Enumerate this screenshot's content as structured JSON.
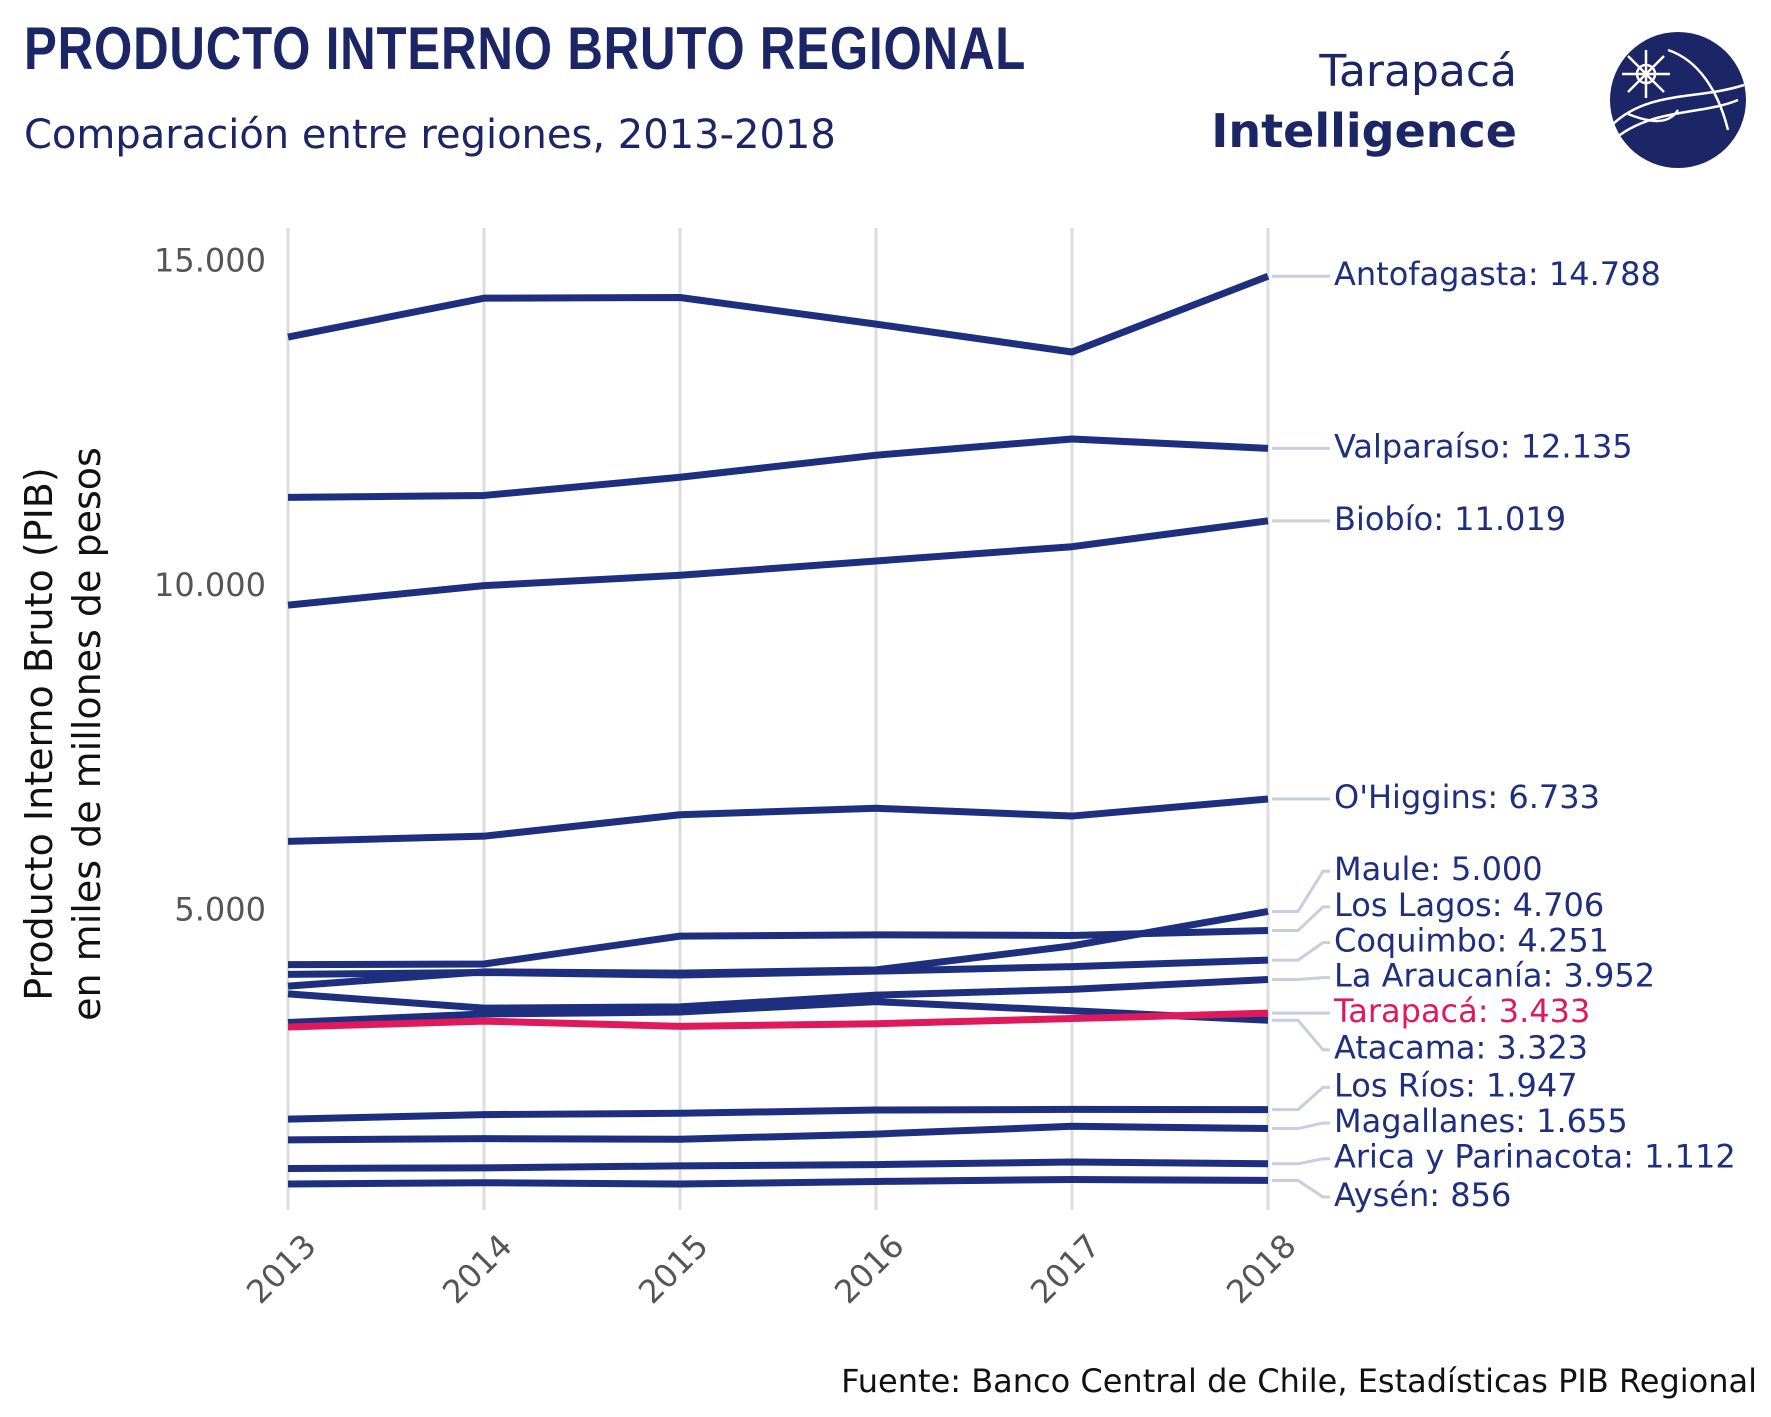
{
  "header": {
    "title": "PRODUCTO INTERNO BRUTO REGIONAL",
    "subtitle": "Comparación entre regiones, 2013-2018"
  },
  "brand": {
    "line1": "Tarapacá",
    "line2": "Intelligence",
    "logo_icon": "globe-compass-icon",
    "color": "#1c2566"
  },
  "footer": {
    "source": "Fuente: Banco Central de Chile, Estadísticas PIB Regional"
  },
  "colors": {
    "series": "#1f2f7f",
    "highlight": "#e0185c",
    "grid": "#dddddd",
    "connector": "#c9cde0"
  },
  "chart_data": {
    "type": "line",
    "ylabel_line1": "Producto Interno Bruto (PIB)",
    "ylabel_line2": "en miles de millones de pesos",
    "x": [
      "2013",
      "2014",
      "2015",
      "2016",
      "2017",
      "2018"
    ],
    "ylim": [
      400,
      15500
    ],
    "yticks": [
      5000,
      10000,
      15000
    ],
    "ytick_labels": [
      "5.000",
      "10.000",
      "15.000"
    ],
    "grid": "vertical",
    "series": [
      {
        "name": "Antofagasta",
        "label": "Antofagasta: 14.788",
        "values": [
          13850,
          14450,
          14460,
          14050,
          13620,
          14788
        ],
        "label_value": 14788,
        "highlight": false
      },
      {
        "name": "Valparaíso",
        "label": "Valparaíso: 12.135",
        "values": [
          11380,
          11410,
          11690,
          12030,
          12280,
          12135
        ],
        "label_value": 12135,
        "highlight": false
      },
      {
        "name": "Biobío",
        "label": "Biobío: 11.019",
        "values": [
          9720,
          10020,
          10180,
          10400,
          10620,
          11019
        ],
        "label_value": 11019,
        "highlight": false
      },
      {
        "name": "O'Higgins",
        "label": "O'Higgins: 6.733",
        "values": [
          6080,
          6160,
          6490,
          6590,
          6470,
          6733
        ],
        "label_value": 6733,
        "highlight": false
      },
      {
        "name": "Maule",
        "label": "Maule: 5.000",
        "values": [
          3850,
          4070,
          4050,
          4100,
          4470,
          5000
        ],
        "label_value": 5620,
        "highlight": false
      },
      {
        "name": "Los Lagos",
        "label": "Los Lagos: 4.706",
        "values": [
          4180,
          4190,
          4620,
          4640,
          4630,
          4706
        ],
        "label_value": 5070,
        "highlight": false
      },
      {
        "name": "Coquimbo",
        "label": "Coquimbo: 4.251",
        "values": [
          4030,
          4060,
          4020,
          4080,
          4150,
          4251
        ],
        "label_value": 4520,
        "highlight": false
      },
      {
        "name": "La Araucanía",
        "label": "La Araucanía: 3.952",
        "values": [
          3730,
          3510,
          3530,
          3710,
          3800,
          3952
        ],
        "label_value": 3980,
        "highlight": false
      },
      {
        "name": "Tarapacá",
        "label": "Tarapacá: 3.433",
        "values": [
          3220,
          3310,
          3230,
          3270,
          3350,
          3433
        ],
        "label_value": 3433,
        "highlight": true
      },
      {
        "name": "Atacama",
        "label": "Atacama: 3.323",
        "values": [
          3290,
          3420,
          3450,
          3610,
          3470,
          3323
        ],
        "label_value": 2870,
        "highlight": false
      },
      {
        "name": "Los Ríos",
        "label": "Los Ríos: 1.947",
        "values": [
          1800,
          1870,
          1890,
          1940,
          1950,
          1947
        ],
        "label_value": 2290,
        "highlight": false
      },
      {
        "name": "Magallanes",
        "label": "Magallanes: 1.655",
        "values": [
          1480,
          1500,
          1490,
          1570,
          1690,
          1655
        ],
        "label_value": 1740,
        "highlight": false
      },
      {
        "name": "Arica y Parinacota",
        "label": "Arica y Parinacota: 1.112",
        "values": [
          1040,
          1050,
          1080,
          1100,
          1140,
          1112
        ],
        "label_value": 1190,
        "highlight": false
      },
      {
        "name": "Aysén",
        "label": "Aysén: 856",
        "values": [
          800,
          820,
          800,
          840,
          870,
          856
        ],
        "label_value": 600,
        "highlight": false
      }
    ]
  }
}
